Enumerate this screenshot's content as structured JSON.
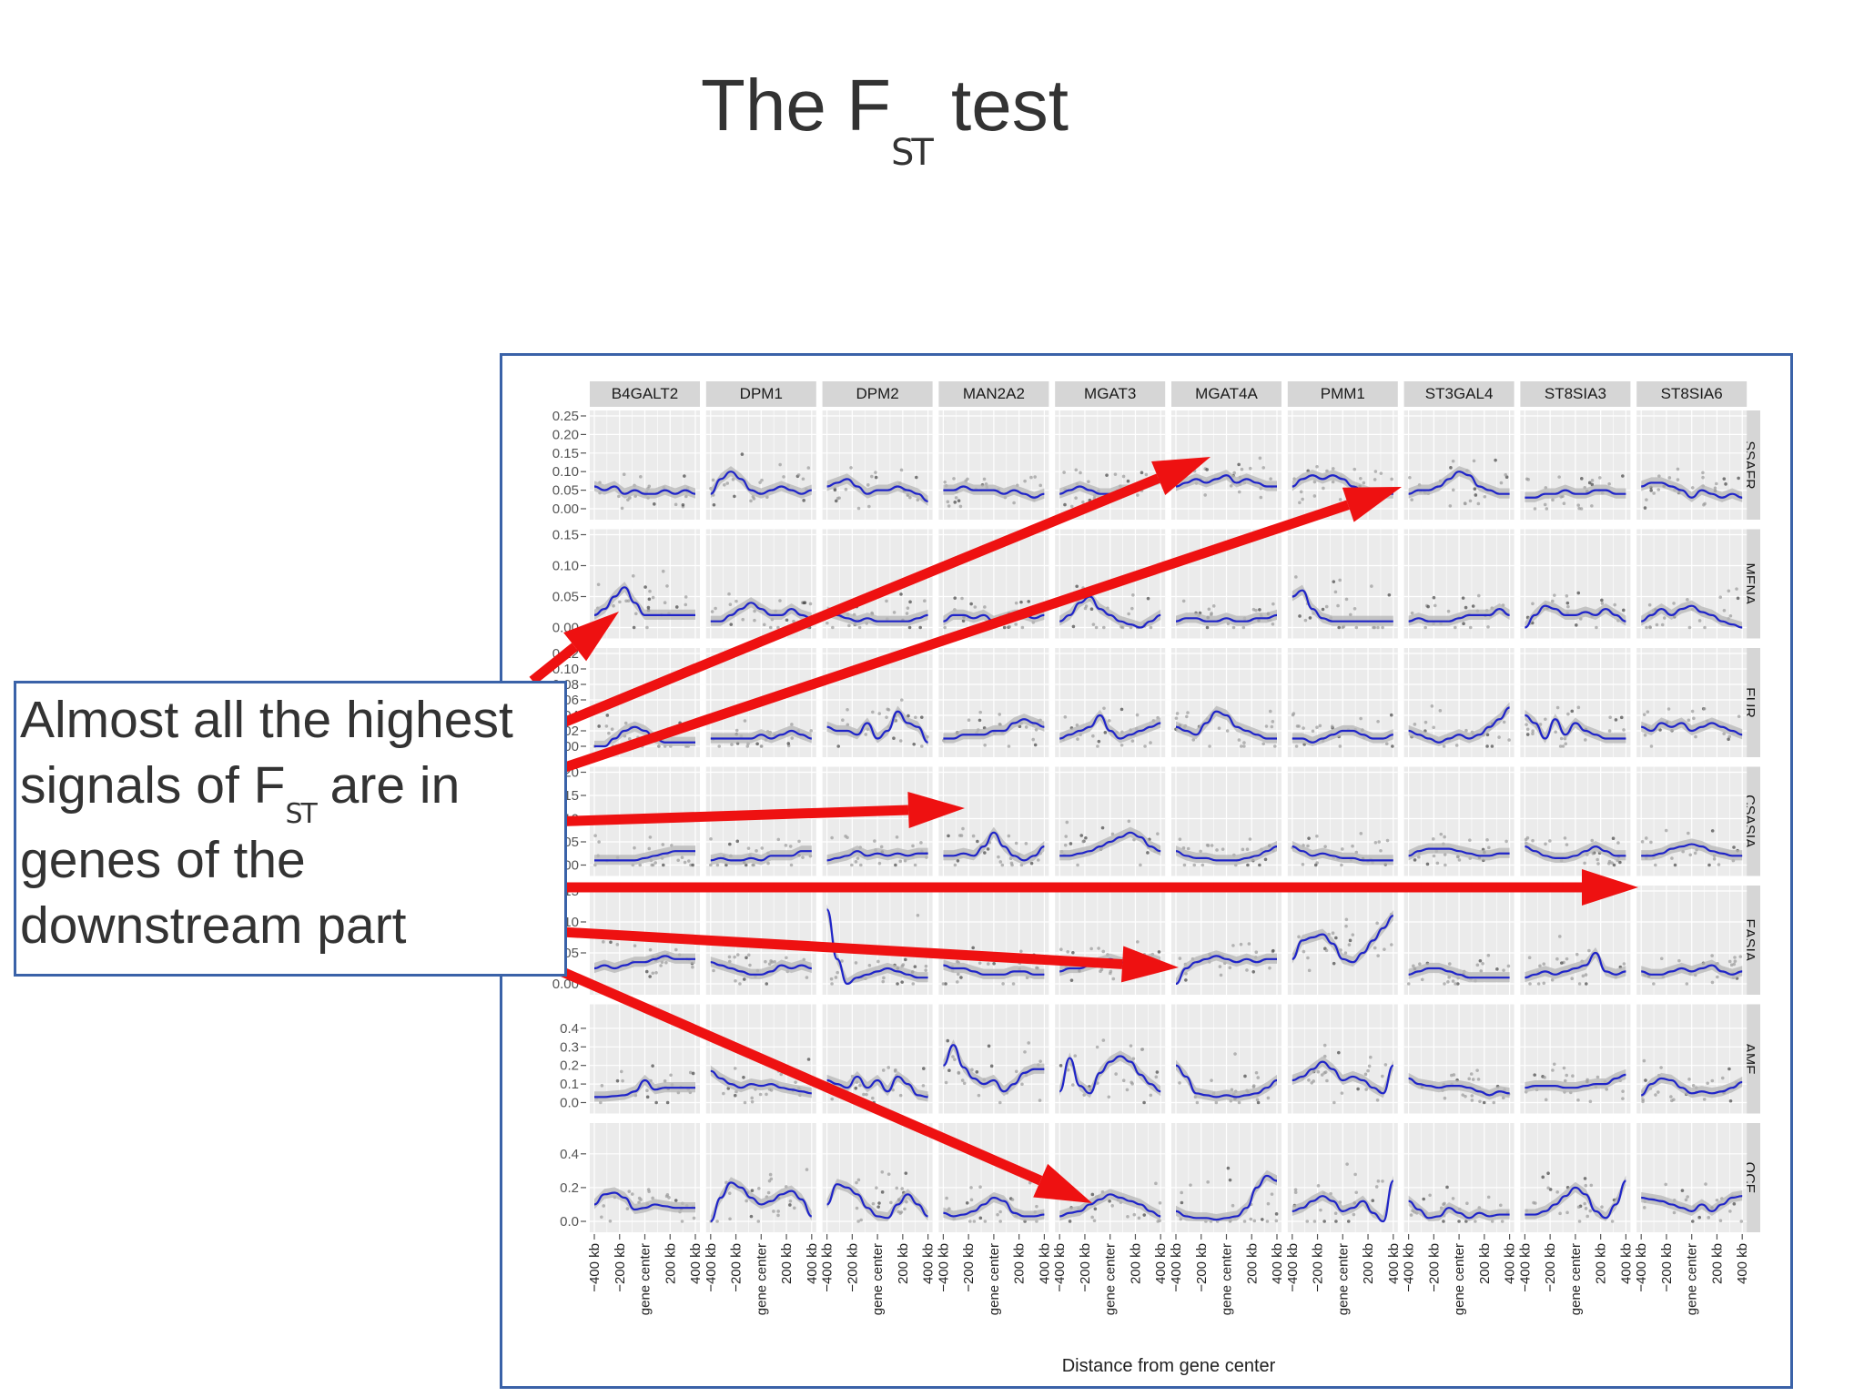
{
  "slide": {
    "title_prefix": "The F",
    "title_sub": "ST",
    "title_suffix": " test"
  },
  "callout": {
    "line1": "Almost all the highest",
    "line2_prefix": "signals of F",
    "line2_sub": "ST",
    "line2_suffix": " are in",
    "line3": "genes of the",
    "line4": "downstream part"
  },
  "colors": {
    "text": "#333333",
    "frame": "#3a62a8",
    "arrow": "#ee1111",
    "smooth_line": "#1f24c8",
    "ci_band": "#b5b5b5",
    "panel_bg": "#ebebeb",
    "strip_bg": "#d6d6d6"
  },
  "chart_data": {
    "type": "scatter",
    "x_axis": {
      "title": "Distance from gene center",
      "tick_labels": [
        "−400 kb",
        "−200 kb",
        "gene center",
        "200 kb",
        "400 kb"
      ]
    },
    "columns": [
      "B4GALT2",
      "DPM1",
      "DPM2",
      "MAN2A2",
      "MGAT3",
      "MGAT4A",
      "PMM1",
      "ST3GAL4",
      "ST8SIA3",
      "ST8SIA6"
    ],
    "rows": [
      {
        "name": "SSAFR",
        "ylim": [
          0,
          0.25
        ],
        "ticks": [
          "0.25",
          "0.20",
          "0.15",
          "0.10",
          "0.05",
          "0.00"
        ],
        "tick_values": [
          0.25,
          0.2,
          0.15,
          0.1,
          0.05,
          0.0
        ]
      },
      {
        "name": "MENA",
        "ylim": [
          0,
          0.15
        ],
        "ticks": [
          "0.15",
          "0.10",
          "0.05",
          "0.00"
        ],
        "tick_values": [
          0.15,
          0.1,
          0.05,
          0.0
        ]
      },
      {
        "name": "EUR",
        "ylim": [
          0,
          0.12
        ],
        "ticks": [
          "0.12",
          "0.10",
          "0.08",
          "0.06",
          "0.04",
          "0.02",
          "0.00"
        ],
        "tick_values": [
          0.12,
          0.1,
          0.08,
          0.06,
          0.04,
          0.02,
          0.0
        ]
      },
      {
        "name": "CSASIA",
        "ylim": [
          0,
          0.2
        ],
        "ticks": [
          "0.20",
          "0.15",
          "0.10",
          "0.05",
          "0.00"
        ],
        "tick_values": [
          0.2,
          0.15,
          0.1,
          0.05,
          0.0
        ]
      },
      {
        "name": "EASIA",
        "ylim": [
          0,
          0.15
        ],
        "ticks": [
          "0.15",
          "0.10",
          "0.05",
          "0.00"
        ],
        "tick_values": [
          0.15,
          0.1,
          0.05,
          0.0
        ]
      },
      {
        "name": "AME",
        "ylim": [
          0,
          0.5
        ],
        "ticks": [
          "0.4",
          "0.3",
          "0.2",
          "0.1",
          "0.0"
        ],
        "tick_values": [
          0.4,
          0.3,
          0.2,
          0.1,
          0.0
        ]
      },
      {
        "name": "OCE",
        "ylim": [
          0,
          0.55
        ],
        "ticks": [
          "0.4",
          "0.2",
          "0.0"
        ],
        "tick_values": [
          0.4,
          0.2,
          0.0
        ]
      }
    ],
    "smooth_curves": [
      [
        [
          0.06,
          0.05,
          0.06,
          0.04,
          0.05,
          0.04,
          0.04,
          0.05,
          0.04,
          0.05,
          0.04
        ],
        [
          0.04,
          0.08,
          0.1,
          0.08,
          0.05,
          0.04,
          0.05,
          0.06,
          0.05,
          0.04,
          0.05
        ],
        [
          0.06,
          0.07,
          0.08,
          0.06,
          0.04,
          0.05,
          0.05,
          0.06,
          0.05,
          0.04,
          0.02
        ],
        [
          0.05,
          0.05,
          0.06,
          0.05,
          0.05,
          0.05,
          0.04,
          0.05,
          0.04,
          0.03,
          0.04
        ],
        [
          0.04,
          0.05,
          0.06,
          0.05,
          0.04,
          0.04,
          0.05,
          0.05,
          0.06,
          0.07,
          0.08
        ],
        [
          0.06,
          0.07,
          0.08,
          0.07,
          0.08,
          0.09,
          0.07,
          0.08,
          0.07,
          0.06,
          0.06
        ],
        [
          0.06,
          0.08,
          0.09,
          0.08,
          0.09,
          0.08,
          0.06,
          0.05,
          0.04,
          0.04,
          0.04
        ],
        [
          0.04,
          0.05,
          0.05,
          0.06,
          0.08,
          0.1,
          0.09,
          0.06,
          0.05,
          0.04,
          0.04
        ],
        [
          0.03,
          0.03,
          0.04,
          0.04,
          0.05,
          0.04,
          0.04,
          0.05,
          0.05,
          0.04,
          0.04
        ],
        [
          0.06,
          0.07,
          0.07,
          0.06,
          0.05,
          0.03,
          0.05,
          0.04,
          0.03,
          0.04,
          0.03
        ]
      ],
      [
        [
          0.02,
          0.03,
          0.05,
          0.065,
          0.04,
          0.02,
          0.02,
          0.02,
          0.02,
          0.02,
          0.02
        ],
        [
          0.01,
          0.01,
          0.02,
          0.03,
          0.04,
          0.03,
          0.02,
          0.02,
          0.03,
          0.02,
          0.015
        ],
        [
          0.025,
          0.02,
          0.015,
          0.01,
          0.015,
          0.01,
          0.01,
          0.01,
          0.01,
          0.015,
          0.02
        ],
        [
          0.01,
          0.02,
          0.02,
          0.015,
          0.02,
          0.01,
          0.015,
          0.02,
          0.02,
          0.015,
          0.02
        ],
        [
          0.01,
          0.02,
          0.04,
          0.05,
          0.03,
          0.02,
          0.01,
          0.005,
          0.0,
          0.01,
          0.02
        ],
        [
          0.01,
          0.015,
          0.015,
          0.01,
          0.01,
          0.015,
          0.01,
          0.01,
          0.015,
          0.015,
          0.02
        ],
        [
          0.05,
          0.06,
          0.03,
          0.015,
          0.01,
          0.01,
          0.01,
          0.01,
          0.01,
          0.01,
          0.01
        ],
        [
          0.01,
          0.015,
          0.01,
          0.01,
          0.01,
          0.015,
          0.02,
          0.02,
          0.02,
          0.03,
          0.02
        ],
        [
          0.0,
          0.02,
          0.035,
          0.03,
          0.02,
          0.02,
          0.025,
          0.02,
          0.03,
          0.02,
          0.01
        ],
        [
          0.01,
          0.02,
          0.03,
          0.02,
          0.03,
          0.035,
          0.025,
          0.02,
          0.01,
          0.005,
          0.0
        ]
      ],
      [
        [
          0.0,
          0.0,
          0.01,
          0.02,
          0.025,
          0.02,
          0.01,
          0.005,
          0.005,
          0.005,
          0.005
        ],
        [
          0.01,
          0.01,
          0.01,
          0.01,
          0.01,
          0.015,
          0.01,
          0.015,
          0.02,
          0.015,
          0.01
        ],
        [
          0.025,
          0.02,
          0.02,
          0.015,
          0.03,
          0.01,
          0.02,
          0.045,
          0.03,
          0.025,
          0.005
        ],
        [
          0.01,
          0.01,
          0.015,
          0.015,
          0.015,
          0.02,
          0.02,
          0.03,
          0.035,
          0.03,
          0.025
        ],
        [
          0.01,
          0.015,
          0.02,
          0.025,
          0.04,
          0.02,
          0.01,
          0.015,
          0.02,
          0.025,
          0.03
        ],
        [
          0.025,
          0.02,
          0.015,
          0.03,
          0.045,
          0.04,
          0.025,
          0.02,
          0.015,
          0.01,
          0.01
        ],
        [
          0.01,
          0.01,
          0.005,
          0.01,
          0.015,
          0.02,
          0.02,
          0.015,
          0.01,
          0.01,
          0.015
        ],
        [
          0.02,
          0.015,
          0.01,
          0.005,
          0.01,
          0.015,
          0.01,
          0.015,
          0.025,
          0.035,
          0.05
        ],
        [
          0.04,
          0.03,
          0.01,
          0.035,
          0.015,
          0.03,
          0.02,
          0.015,
          0.01,
          0.01,
          0.01
        ],
        [
          0.025,
          0.02,
          0.03,
          0.025,
          0.03,
          0.02,
          0.025,
          0.03,
          0.025,
          0.02,
          0.015
        ]
      ],
      [
        [
          0.01,
          0.01,
          0.01,
          0.01,
          0.01,
          0.015,
          0.02,
          0.025,
          0.03,
          0.03,
          0.03
        ],
        [
          0.01,
          0.015,
          0.01,
          0.01,
          0.015,
          0.01,
          0.02,
          0.02,
          0.02,
          0.03,
          0.03
        ],
        [
          0.01,
          0.015,
          0.02,
          0.03,
          0.02,
          0.025,
          0.02,
          0.025,
          0.02,
          0.025,
          0.025
        ],
        [
          0.02,
          0.02,
          0.025,
          0.02,
          0.04,
          0.07,
          0.04,
          0.02,
          0.01,
          0.02,
          0.04
        ],
        [
          0.02,
          0.02,
          0.025,
          0.03,
          0.04,
          0.05,
          0.06,
          0.07,
          0.06,
          0.04,
          0.03
        ],
        [
          0.03,
          0.02,
          0.015,
          0.015,
          0.01,
          0.01,
          0.01,
          0.015,
          0.02,
          0.03,
          0.04
        ],
        [
          0.04,
          0.03,
          0.02,
          0.025,
          0.02,
          0.015,
          0.015,
          0.01,
          0.01,
          0.01,
          0.01
        ],
        [
          0.02,
          0.03,
          0.035,
          0.035,
          0.035,
          0.03,
          0.025,
          0.02,
          0.02,
          0.025,
          0.025
        ],
        [
          0.04,
          0.03,
          0.02,
          0.015,
          0.015,
          0.02,
          0.03,
          0.04,
          0.03,
          0.02,
          0.02
        ],
        [
          0.02,
          0.02,
          0.025,
          0.035,
          0.04,
          0.045,
          0.04,
          0.03,
          0.025,
          0.02,
          0.02
        ]
      ],
      [
        [
          0.025,
          0.03,
          0.025,
          0.03,
          0.035,
          0.035,
          0.04,
          0.045,
          0.04,
          0.04,
          0.04
        ],
        [
          0.035,
          0.03,
          0.025,
          0.02,
          0.015,
          0.015,
          0.02,
          0.03,
          0.025,
          0.03,
          0.025
        ],
        [
          0.12,
          0.04,
          0.0,
          0.01,
          0.015,
          0.02,
          0.025,
          0.02,
          0.015,
          0.01,
          0.01
        ],
        [
          0.03,
          0.025,
          0.025,
          0.02,
          0.015,
          0.015,
          0.015,
          0.02,
          0.02,
          0.015,
          0.015
        ],
        [
          0.02,
          0.025,
          0.025,
          0.03,
          0.035,
          0.04,
          0.035,
          0.03,
          0.035,
          0.04,
          0.035
        ],
        [
          0.0,
          0.025,
          0.035,
          0.04,
          0.045,
          0.04,
          0.035,
          0.04,
          0.035,
          0.04,
          0.04
        ],
        [
          0.04,
          0.07,
          0.075,
          0.08,
          0.065,
          0.04,
          0.035,
          0.05,
          0.07,
          0.09,
          0.11
        ],
        [
          0.015,
          0.02,
          0.025,
          0.025,
          0.02,
          0.015,
          0.01,
          0.01,
          0.01,
          0.01,
          0.01
        ],
        [
          0.01,
          0.015,
          0.02,
          0.015,
          0.02,
          0.025,
          0.03,
          0.05,
          0.02,
          0.015,
          0.02
        ],
        [
          0.02,
          0.015,
          0.015,
          0.02,
          0.025,
          0.02,
          0.025,
          0.03,
          0.02,
          0.015,
          0.02
        ]
      ],
      [
        [
          0.03,
          0.03,
          0.035,
          0.04,
          0.06,
          0.12,
          0.07,
          0.08,
          0.08,
          0.08,
          0.08
        ],
        [
          0.17,
          0.13,
          0.1,
          0.08,
          0.1,
          0.09,
          0.1,
          0.08,
          0.07,
          0.06,
          0.05
        ],
        [
          0.12,
          0.1,
          0.08,
          0.14,
          0.08,
          0.12,
          0.06,
          0.14,
          0.1,
          0.04,
          0.03
        ],
        [
          0.2,
          0.31,
          0.19,
          0.13,
          0.1,
          0.12,
          0.06,
          0.1,
          0.16,
          0.18,
          0.18
        ],
        [
          0.06,
          0.24,
          0.09,
          0.05,
          0.16,
          0.22,
          0.25,
          0.22,
          0.15,
          0.1,
          0.06
        ],
        [
          0.2,
          0.14,
          0.05,
          0.04,
          0.03,
          0.04,
          0.03,
          0.04,
          0.05,
          0.08,
          0.12
        ],
        [
          0.12,
          0.14,
          0.18,
          0.22,
          0.18,
          0.12,
          0.14,
          0.12,
          0.08,
          0.05,
          0.2
        ],
        [
          0.13,
          0.1,
          0.09,
          0.08,
          0.09,
          0.09,
          0.08,
          0.06,
          0.04,
          0.06,
          0.05
        ],
        [
          0.08,
          0.09,
          0.09,
          0.09,
          0.08,
          0.08,
          0.09,
          0.1,
          0.1,
          0.13,
          0.15
        ],
        [
          0.04,
          0.1,
          0.13,
          0.12,
          0.08,
          0.05,
          0.06,
          0.05,
          0.06,
          0.08,
          0.11
        ]
      ],
      [
        [
          0.1,
          0.16,
          0.17,
          0.14,
          0.07,
          0.08,
          0.1,
          0.09,
          0.08,
          0.08,
          0.08
        ],
        [
          0.0,
          0.14,
          0.23,
          0.2,
          0.14,
          0.1,
          0.12,
          0.16,
          0.18,
          0.13,
          0.03
        ],
        [
          0.1,
          0.22,
          0.2,
          0.16,
          0.08,
          0.03,
          0.02,
          0.1,
          0.16,
          0.1,
          0.03
        ],
        [
          0.05,
          0.03,
          0.04,
          0.06,
          0.1,
          0.14,
          0.12,
          0.05,
          0.03,
          0.03,
          0.04
        ],
        [
          0.03,
          0.05,
          0.06,
          0.1,
          0.13,
          0.16,
          0.14,
          0.12,
          0.1,
          0.06,
          0.03
        ],
        [
          0.06,
          0.03,
          0.02,
          0.02,
          0.01,
          0.02,
          0.03,
          0.08,
          0.2,
          0.27,
          0.24
        ],
        [
          0.06,
          0.08,
          0.12,
          0.15,
          0.12,
          0.06,
          0.08,
          0.12,
          0.05,
          0.0,
          0.24
        ],
        [
          0.12,
          0.07,
          0.02,
          0.03,
          0.08,
          0.05,
          0.02,
          0.05,
          0.03,
          0.04,
          0.04
        ],
        [
          0.04,
          0.04,
          0.06,
          0.1,
          0.15,
          0.2,
          0.16,
          0.06,
          0.02,
          0.1,
          0.24
        ],
        [
          0.14,
          0.13,
          0.12,
          0.1,
          0.08,
          0.06,
          0.1,
          0.06,
          0.1,
          0.14,
          0.15
        ]
      ]
    ]
  }
}
